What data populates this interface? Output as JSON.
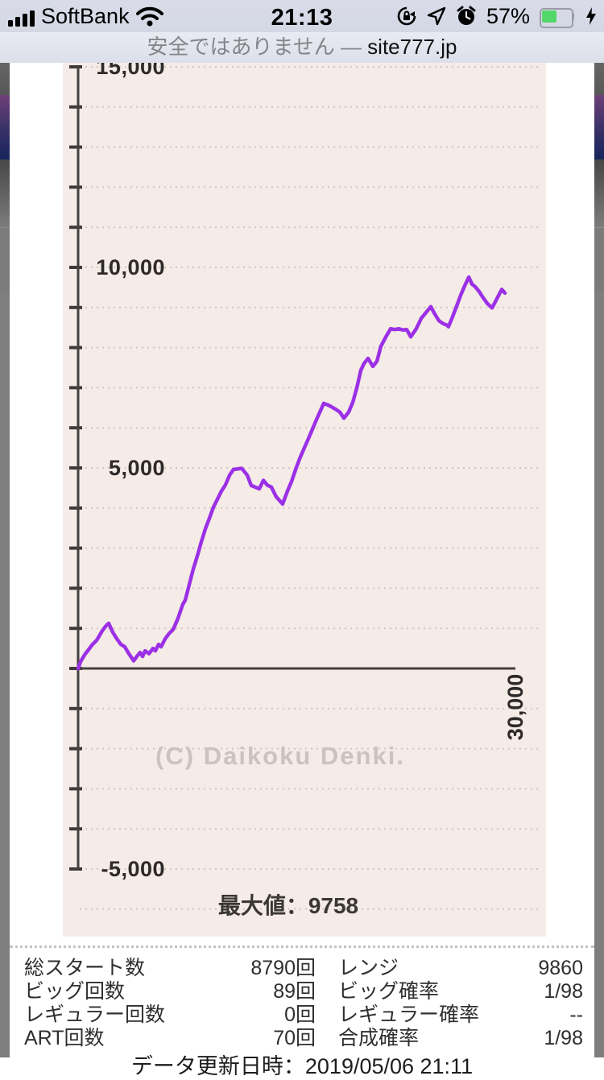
{
  "status_bar": {
    "carrier": "SoftBank",
    "time": "21:13",
    "battery_percent": "57%",
    "battery_color": "#53d769",
    "icons": [
      "signal-icon",
      "wifi-icon",
      "rotation-lock-icon",
      "location-arrow-icon",
      "alarm-icon",
      "battery-icon",
      "charging-bolt-icon"
    ]
  },
  "address_bar": {
    "security_text": "安全ではありません — ",
    "domain": "site777.jp"
  },
  "chart_data": {
    "type": "line",
    "title": "",
    "xlabel": "",
    "ylabel": "",
    "x_axis": {
      "max": 30000,
      "tick_label": "30,000",
      "tick_value": 30000
    },
    "y_axis": {
      "min": -5000,
      "max": 15000,
      "tick_step": 1000,
      "labels": [
        {
          "value": 15000,
          "text": "15,000"
        },
        {
          "value": 10000,
          "text": "10,000"
        },
        {
          "value": 5000,
          "text": "5,000"
        },
        {
          "value": -5000,
          "text": "-5,000"
        }
      ]
    },
    "grid": {
      "step": 1000,
      "min": -6000,
      "max": 15000,
      "skip": [
        0
      ]
    },
    "line_color": "#9b30e6",
    "watermark": "(C) Daikoku Denki.",
    "max_value": 9758,
    "max_value_label": "最大値：9758",
    "series": [
      {
        "name": "slump-graph",
        "points": [
          [
            0,
            0
          ],
          [
            170,
            170
          ],
          [
            440,
            340
          ],
          [
            720,
            470
          ],
          [
            990,
            600
          ],
          [
            1270,
            700
          ],
          [
            1660,
            940
          ],
          [
            1930,
            1070
          ],
          [
            2100,
            1125
          ],
          [
            2380,
            900
          ],
          [
            2650,
            740
          ],
          [
            2930,
            600
          ],
          [
            3200,
            540
          ],
          [
            3480,
            370
          ],
          [
            3810,
            190
          ],
          [
            4030,
            300
          ],
          [
            4250,
            400
          ],
          [
            4420,
            300
          ],
          [
            4590,
            440
          ],
          [
            4860,
            370
          ],
          [
            5140,
            500
          ],
          [
            5300,
            440
          ],
          [
            5520,
            600
          ],
          [
            5690,
            540
          ],
          [
            5970,
            740
          ],
          [
            6240,
            870
          ],
          [
            6520,
            970
          ],
          [
            6850,
            1250
          ],
          [
            7180,
            1600
          ],
          [
            7350,
            1700
          ],
          [
            7900,
            2480
          ],
          [
            8180,
            2810
          ],
          [
            8450,
            3150
          ],
          [
            8730,
            3480
          ],
          [
            9010,
            3750
          ],
          [
            9280,
            4020
          ],
          [
            9560,
            4220
          ],
          [
            9830,
            4420
          ],
          [
            10110,
            4580
          ],
          [
            10390,
            4820
          ],
          [
            10660,
            4960
          ],
          [
            11220,
            4990
          ],
          [
            11600,
            4820
          ],
          [
            11880,
            4560
          ],
          [
            12430,
            4480
          ],
          [
            12710,
            4690
          ],
          [
            12980,
            4570
          ],
          [
            13260,
            4520
          ],
          [
            13590,
            4280
          ],
          [
            14030,
            4100
          ],
          [
            14360,
            4420
          ],
          [
            14640,
            4660
          ],
          [
            14920,
            4960
          ],
          [
            15190,
            5220
          ],
          [
            15470,
            5460
          ],
          [
            15750,
            5690
          ],
          [
            16020,
            5920
          ],
          [
            16300,
            6160
          ],
          [
            16580,
            6390
          ],
          [
            16850,
            6610
          ],
          [
            17130,
            6570
          ],
          [
            17400,
            6520
          ],
          [
            17680,
            6460
          ],
          [
            17960,
            6390
          ],
          [
            18230,
            6240
          ],
          [
            18560,
            6390
          ],
          [
            18840,
            6630
          ],
          [
            19120,
            7000
          ],
          [
            19390,
            7430
          ],
          [
            19610,
            7600
          ],
          [
            19890,
            7730
          ],
          [
            20220,
            7530
          ],
          [
            20500,
            7660
          ],
          [
            20770,
            8030
          ],
          [
            21160,
            8300
          ],
          [
            21440,
            8470
          ],
          [
            21710,
            8450
          ],
          [
            21990,
            8470
          ],
          [
            22270,
            8440
          ],
          [
            22540,
            8450
          ],
          [
            22820,
            8270
          ],
          [
            23200,
            8470
          ],
          [
            23540,
            8730
          ],
          [
            23920,
            8900
          ],
          [
            24200,
            9020
          ],
          [
            24480,
            8830
          ],
          [
            24750,
            8670
          ],
          [
            25030,
            8600
          ],
          [
            25300,
            8560
          ],
          [
            25410,
            8520
          ],
          [
            25690,
            8770
          ],
          [
            25970,
            9040
          ],
          [
            26240,
            9300
          ],
          [
            26520,
            9540
          ],
          [
            26800,
            9758
          ],
          [
            27020,
            9580
          ],
          [
            27240,
            9520
          ],
          [
            27510,
            9400
          ],
          [
            27790,
            9240
          ],
          [
            28070,
            9100
          ],
          [
            28400,
            8990
          ],
          [
            28620,
            9140
          ],
          [
            28900,
            9340
          ],
          [
            29060,
            9450
          ],
          [
            29280,
            9360
          ]
        ]
      }
    ]
  },
  "stats": {
    "rows": [
      {
        "label1": "総スタート数",
        "value1": "8790回",
        "label2": "レンジ",
        "value2": "9860"
      },
      {
        "label1": "ビッグ回数",
        "value1": "89回",
        "label2": "ビッグ確率",
        "value2": "1/98"
      },
      {
        "label1": "レギュラー回数",
        "value1": "0回",
        "label2": "レギュラー確率",
        "value2": "--"
      },
      {
        "label1": "ART回数",
        "value1": "70回",
        "label2": "合成確率",
        "value2": "1/98"
      }
    ],
    "updated": "データ更新日時：2019/05/06 21:11"
  }
}
